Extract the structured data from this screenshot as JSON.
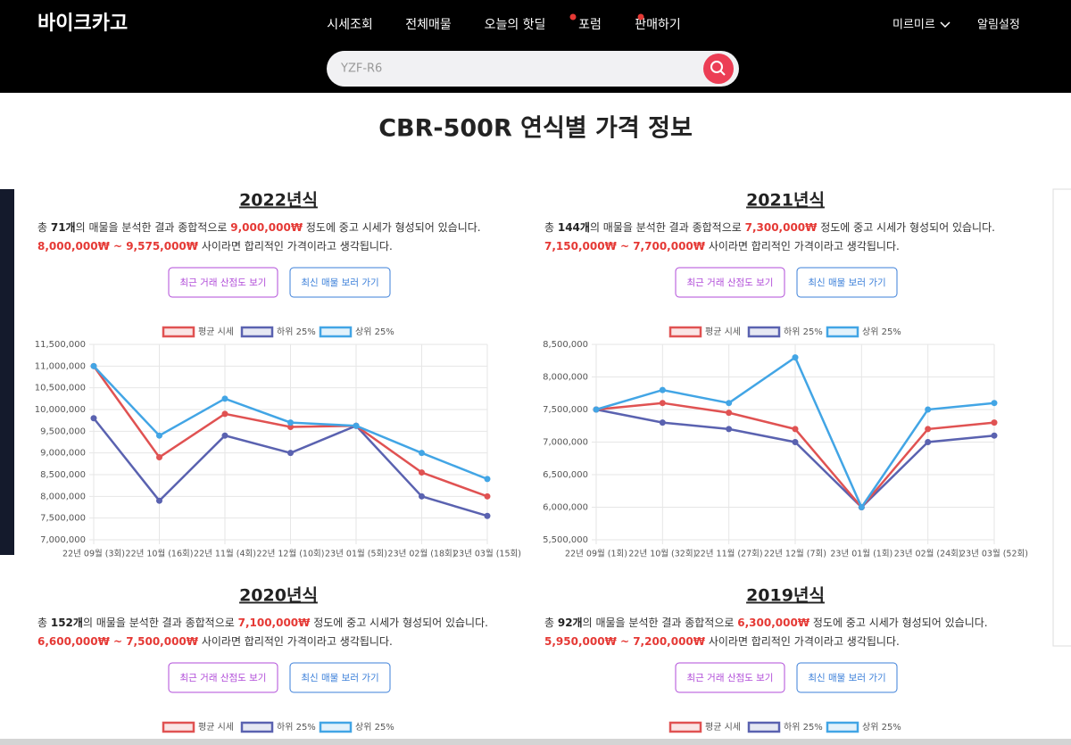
{
  "header": {
    "logo": "바이크카고",
    "nav": [
      "시세조회",
      "전체매물",
      "오늘의 핫딜",
      "포럼",
      "판매하기"
    ],
    "user": "미르미르",
    "alerts": "알림설정",
    "search_placeholder": "YZF-R6"
  },
  "page_title": "CBR-500R 연식별 가격 정보",
  "buttons": [
    "최근 거래 산점도 보기",
    "최신 매물 보러 가기"
  ],
  "sections": [
    {
      "title": "2022년식",
      "line1": [
        "총 ",
        "71개",
        "의 매물을 분석한 결과 종합적으로 ",
        "9,000,000₩",
        " 정도에 중고 시세가 형성되어 있습니다."
      ],
      "line2": [
        "8,000,000₩ ~ 9,575,000₩",
        " 사이라면 합리적인 가격이라고 생각됩니다."
      ]
    },
    {
      "title": "2021년식",
      "line1": [
        "총 ",
        "144개",
        "의 매물을 분석한 결과 종합적으로 ",
        "7,300,000₩",
        " 정도에 중고 시세가 형성되어 있습니다."
      ],
      "line2": [
        "7,150,000₩ ~ 7,700,000₩",
        " 사이라면 합리적인 가격이라고 생각됩니다."
      ]
    },
    {
      "title": "2020년식",
      "line1": [
        "총 ",
        "152개",
        "의 매물을 분석한 결과 종합적으로 ",
        "7,100,000₩",
        " 정도에 중고 시세가 형성되어 있습니다."
      ],
      "line2": [
        "6,600,000₩ ~ 7,500,000₩",
        " 사이라면 합리적인 가격이라고 생각됩니다."
      ]
    },
    {
      "title": "2019년식",
      "line1": [
        "총 ",
        "92개",
        "의 매물을 분석한 결과 종합적으로 ",
        "6,300,000₩",
        " 정도에 중고 시세가 형성되어 있습니다."
      ],
      "line2": [
        "5,950,000₩ ~ 7,200,000₩",
        " 사이라면 합리적인 가격이라고 생각됩니다."
      ]
    }
  ],
  "chart_data": [
    {
      "type": "line",
      "categories": [
        "22년 09월 (3회)",
        "22년 10월 (16회)",
        "22년 11월 (4회)",
        "22년 12월 (10회)",
        "23년 01월 (5회)",
        "23년 02월 (18회)",
        "23년 03월 (15회)"
      ],
      "ylim": [
        7000000,
        11500000
      ],
      "yticks": [
        {
          "value": 7000000,
          "label": "7,000,000"
        },
        {
          "value": 7500000,
          "label": "7,500,000"
        },
        {
          "value": 8000000,
          "label": "8,000,000"
        },
        {
          "value": 8500000,
          "label": "8,500,000"
        },
        {
          "value": 9000000,
          "label": "9,000,000"
        },
        {
          "value": 9500000,
          "label": "9,500,000"
        },
        {
          "value": 10000000,
          "label": "10,000,000"
        },
        {
          "value": 10500000,
          "label": "10,500,000"
        },
        {
          "value": 11000000,
          "label": "11,000,000"
        },
        {
          "value": 11500000,
          "label": "11,500,000"
        }
      ],
      "grid": true,
      "series": [
        {
          "name": "평균 시세",
          "color": "#e05252",
          "values": [
            11000000,
            8900000,
            9900000,
            9600000,
            9625000,
            8550000,
            8000000
          ]
        },
        {
          "name": "하위 25%",
          "color": "#5a62b0",
          "values": [
            9800000,
            7900000,
            9400000,
            9000000,
            9625000,
            8000000,
            7550000
          ]
        },
        {
          "name": "상위 25%",
          "color": "#42a5e5",
          "values": [
            11000000,
            9400000,
            10250000,
            9700000,
            9625000,
            9000000,
            8400000
          ]
        }
      ]
    },
    {
      "type": "line",
      "categories": [
        "22년 09월 (1회)",
        "22년 10월 (32회)",
        "22년 11월 (27회)",
        "22년 12월 (7회)",
        "23년 01월 (1회)",
        "23년 02월 (24회)",
        "23년 03월 (52회)"
      ],
      "ylim": [
        5500000,
        8500000
      ],
      "yticks": [
        {
          "value": 5500000,
          "label": "5,500,000"
        },
        {
          "value": 6000000,
          "label": "6,000,000"
        },
        {
          "value": 6500000,
          "label": "6,500,000"
        },
        {
          "value": 7000000,
          "label": "7,000,000"
        },
        {
          "value": 7500000,
          "label": "7,500,000"
        },
        {
          "value": 8000000,
          "label": "8,000,000"
        },
        {
          "value": 8500000,
          "label": "8,500,000"
        }
      ],
      "grid": true,
      "series": [
        {
          "name": "평균 시세",
          "color": "#e05252",
          "values": [
            7500000,
            7600000,
            7450000,
            7200000,
            6000000,
            7200000,
            7300000
          ]
        },
        {
          "name": "하위 25%",
          "color": "#5a62b0",
          "values": [
            7500000,
            7300000,
            7200000,
            7000000,
            6000000,
            7000000,
            7100000
          ]
        },
        {
          "name": "상위 25%",
          "color": "#42a5e5",
          "values": [
            7500000,
            7800000,
            7600000,
            8300000,
            6000000,
            7500000,
            7600000
          ]
        }
      ]
    },
    {
      "type": "line",
      "series": [
        {
          "name": "평균 시세",
          "color": "#e05252"
        },
        {
          "name": "하위 25%",
          "color": "#5a62b0"
        },
        {
          "name": "상위 25%",
          "color": "#42a5e5"
        }
      ]
    },
    {
      "type": "line",
      "series": [
        {
          "name": "평균 시세",
          "color": "#e05252"
        },
        {
          "name": "하위 25%",
          "color": "#5a62b0"
        },
        {
          "name": "상위 25%",
          "color": "#42a5e5"
        }
      ]
    }
  ]
}
